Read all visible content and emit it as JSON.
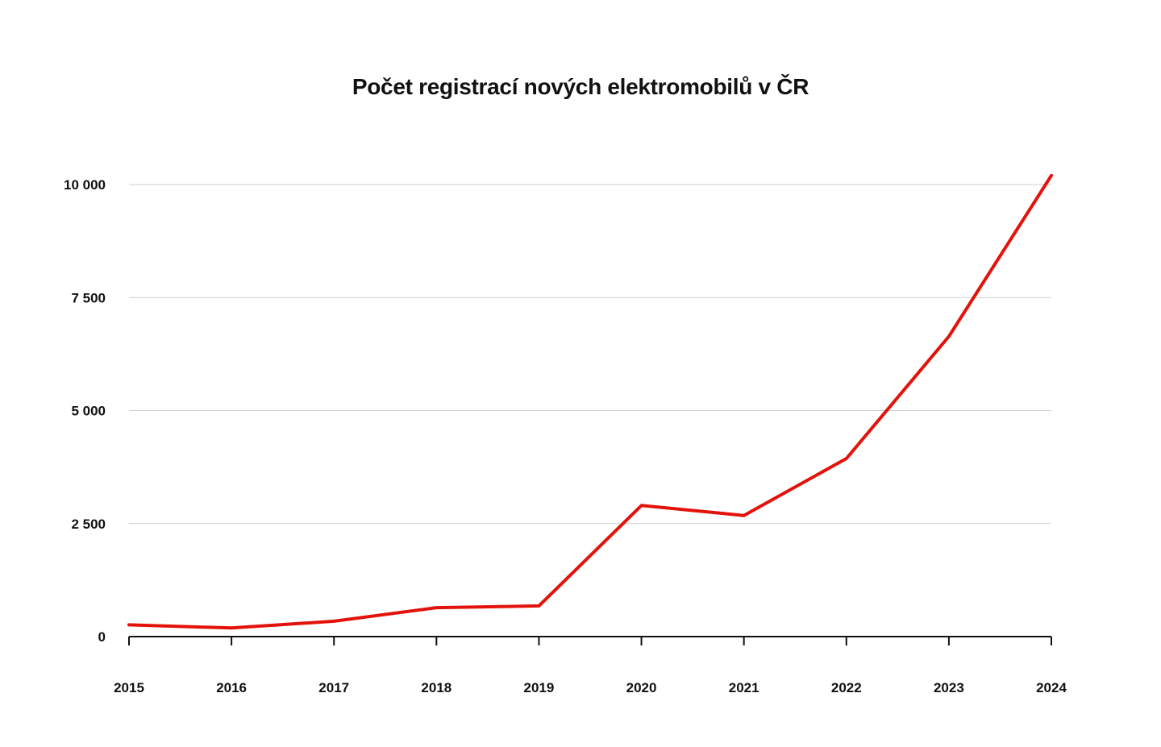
{
  "chart_data": {
    "type": "line",
    "title": "Počet registrací nových elektromobilů v ČR",
    "xlabel": "",
    "ylabel": "",
    "x": [
      "2015",
      "2016",
      "2017",
      "2018",
      "2019",
      "2020",
      "2021",
      "2022",
      "2023",
      "2024"
    ],
    "series": [
      {
        "color": "#e3120b",
        "values": [
          260,
          190,
          340,
          640,
          680,
          2900,
          2680,
          3940,
          6640,
          10200
        ]
      }
    ],
    "yticks": [
      0,
      2500,
      5000,
      7500,
      10000
    ],
    "ytick_labels": [
      "0",
      "2 500",
      "5 000",
      "7 500",
      "10 000"
    ],
    "ylim": [
      0,
      10000
    ],
    "grid": true,
    "legend": "none"
  }
}
